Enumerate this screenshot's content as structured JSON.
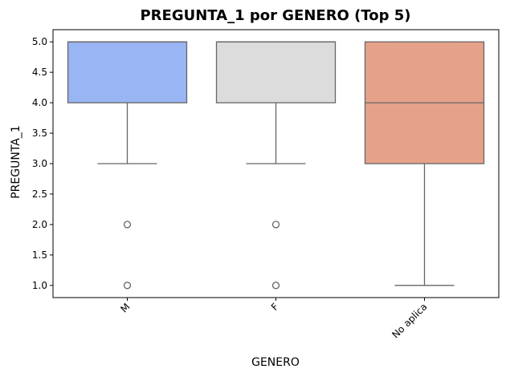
{
  "chart_data": {
    "type": "box",
    "title": "PREGUNTA_1 por GENERO (Top 5)",
    "xlabel": "GENERO",
    "ylabel": "PREGUNTA_1",
    "ylim": [
      0.8,
      5.2
    ],
    "yticks": [
      "1.0",
      "1.5",
      "2.0",
      "2.5",
      "3.0",
      "3.5",
      "4.0",
      "4.5",
      "5.0"
    ],
    "grid": false,
    "categories": [
      "M",
      "F",
      "No aplica"
    ],
    "boxes": [
      {
        "category": "M",
        "whisker_low": 3.0,
        "q1": 4.0,
        "median": 5.0,
        "q3": 5.0,
        "whisker_high": 5.0,
        "outliers": [
          2.0,
          1.0
        ],
        "color": "#9ab5f3"
      },
      {
        "category": "F",
        "whisker_low": 3.0,
        "q1": 4.0,
        "median": 5.0,
        "q3": 5.0,
        "whisker_high": 5.0,
        "outliers": [
          2.0,
          1.0
        ],
        "color": "#dcdcdc"
      },
      {
        "category": "No aplica",
        "whisker_low": 1.0,
        "q1": 3.0,
        "median": 4.0,
        "q3": 5.0,
        "whisker_high": 5.0,
        "outliers": [],
        "color": "#e6a18a"
      }
    ],
    "line_color": "#666666"
  }
}
